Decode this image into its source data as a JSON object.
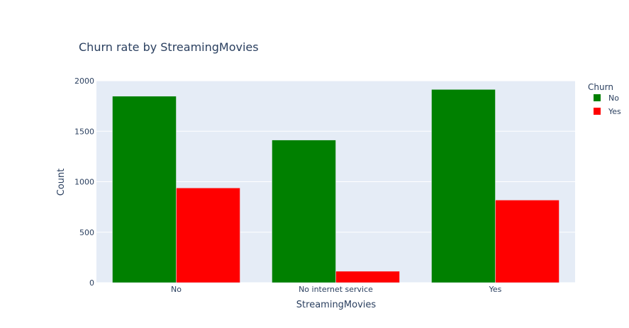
{
  "chart_data": {
    "type": "bar",
    "title": "Churn rate by  StreamingMovies",
    "xlabel": "StreamingMovies",
    "ylabel": "Count",
    "categories": [
      "No",
      "No internet service",
      "Yes"
    ],
    "series": [
      {
        "name": "No",
        "values": [
          1847,
          1413,
          1914
        ],
        "color": "#008000"
      },
      {
        "name": "Yes",
        "values": [
          938,
          113,
          818
        ],
        "color": "#ff0000"
      }
    ],
    "ylim": [
      0,
      2000
    ],
    "yticks": [
      0,
      500,
      1000,
      1500,
      2000
    ],
    "ytick_labels": [
      "0",
      "500",
      "1000",
      "1500",
      "2000"
    ],
    "legend": {
      "title": "Churn",
      "placement": "top-right outside"
    },
    "grid": true,
    "plot_background": "#e5ecf6"
  }
}
